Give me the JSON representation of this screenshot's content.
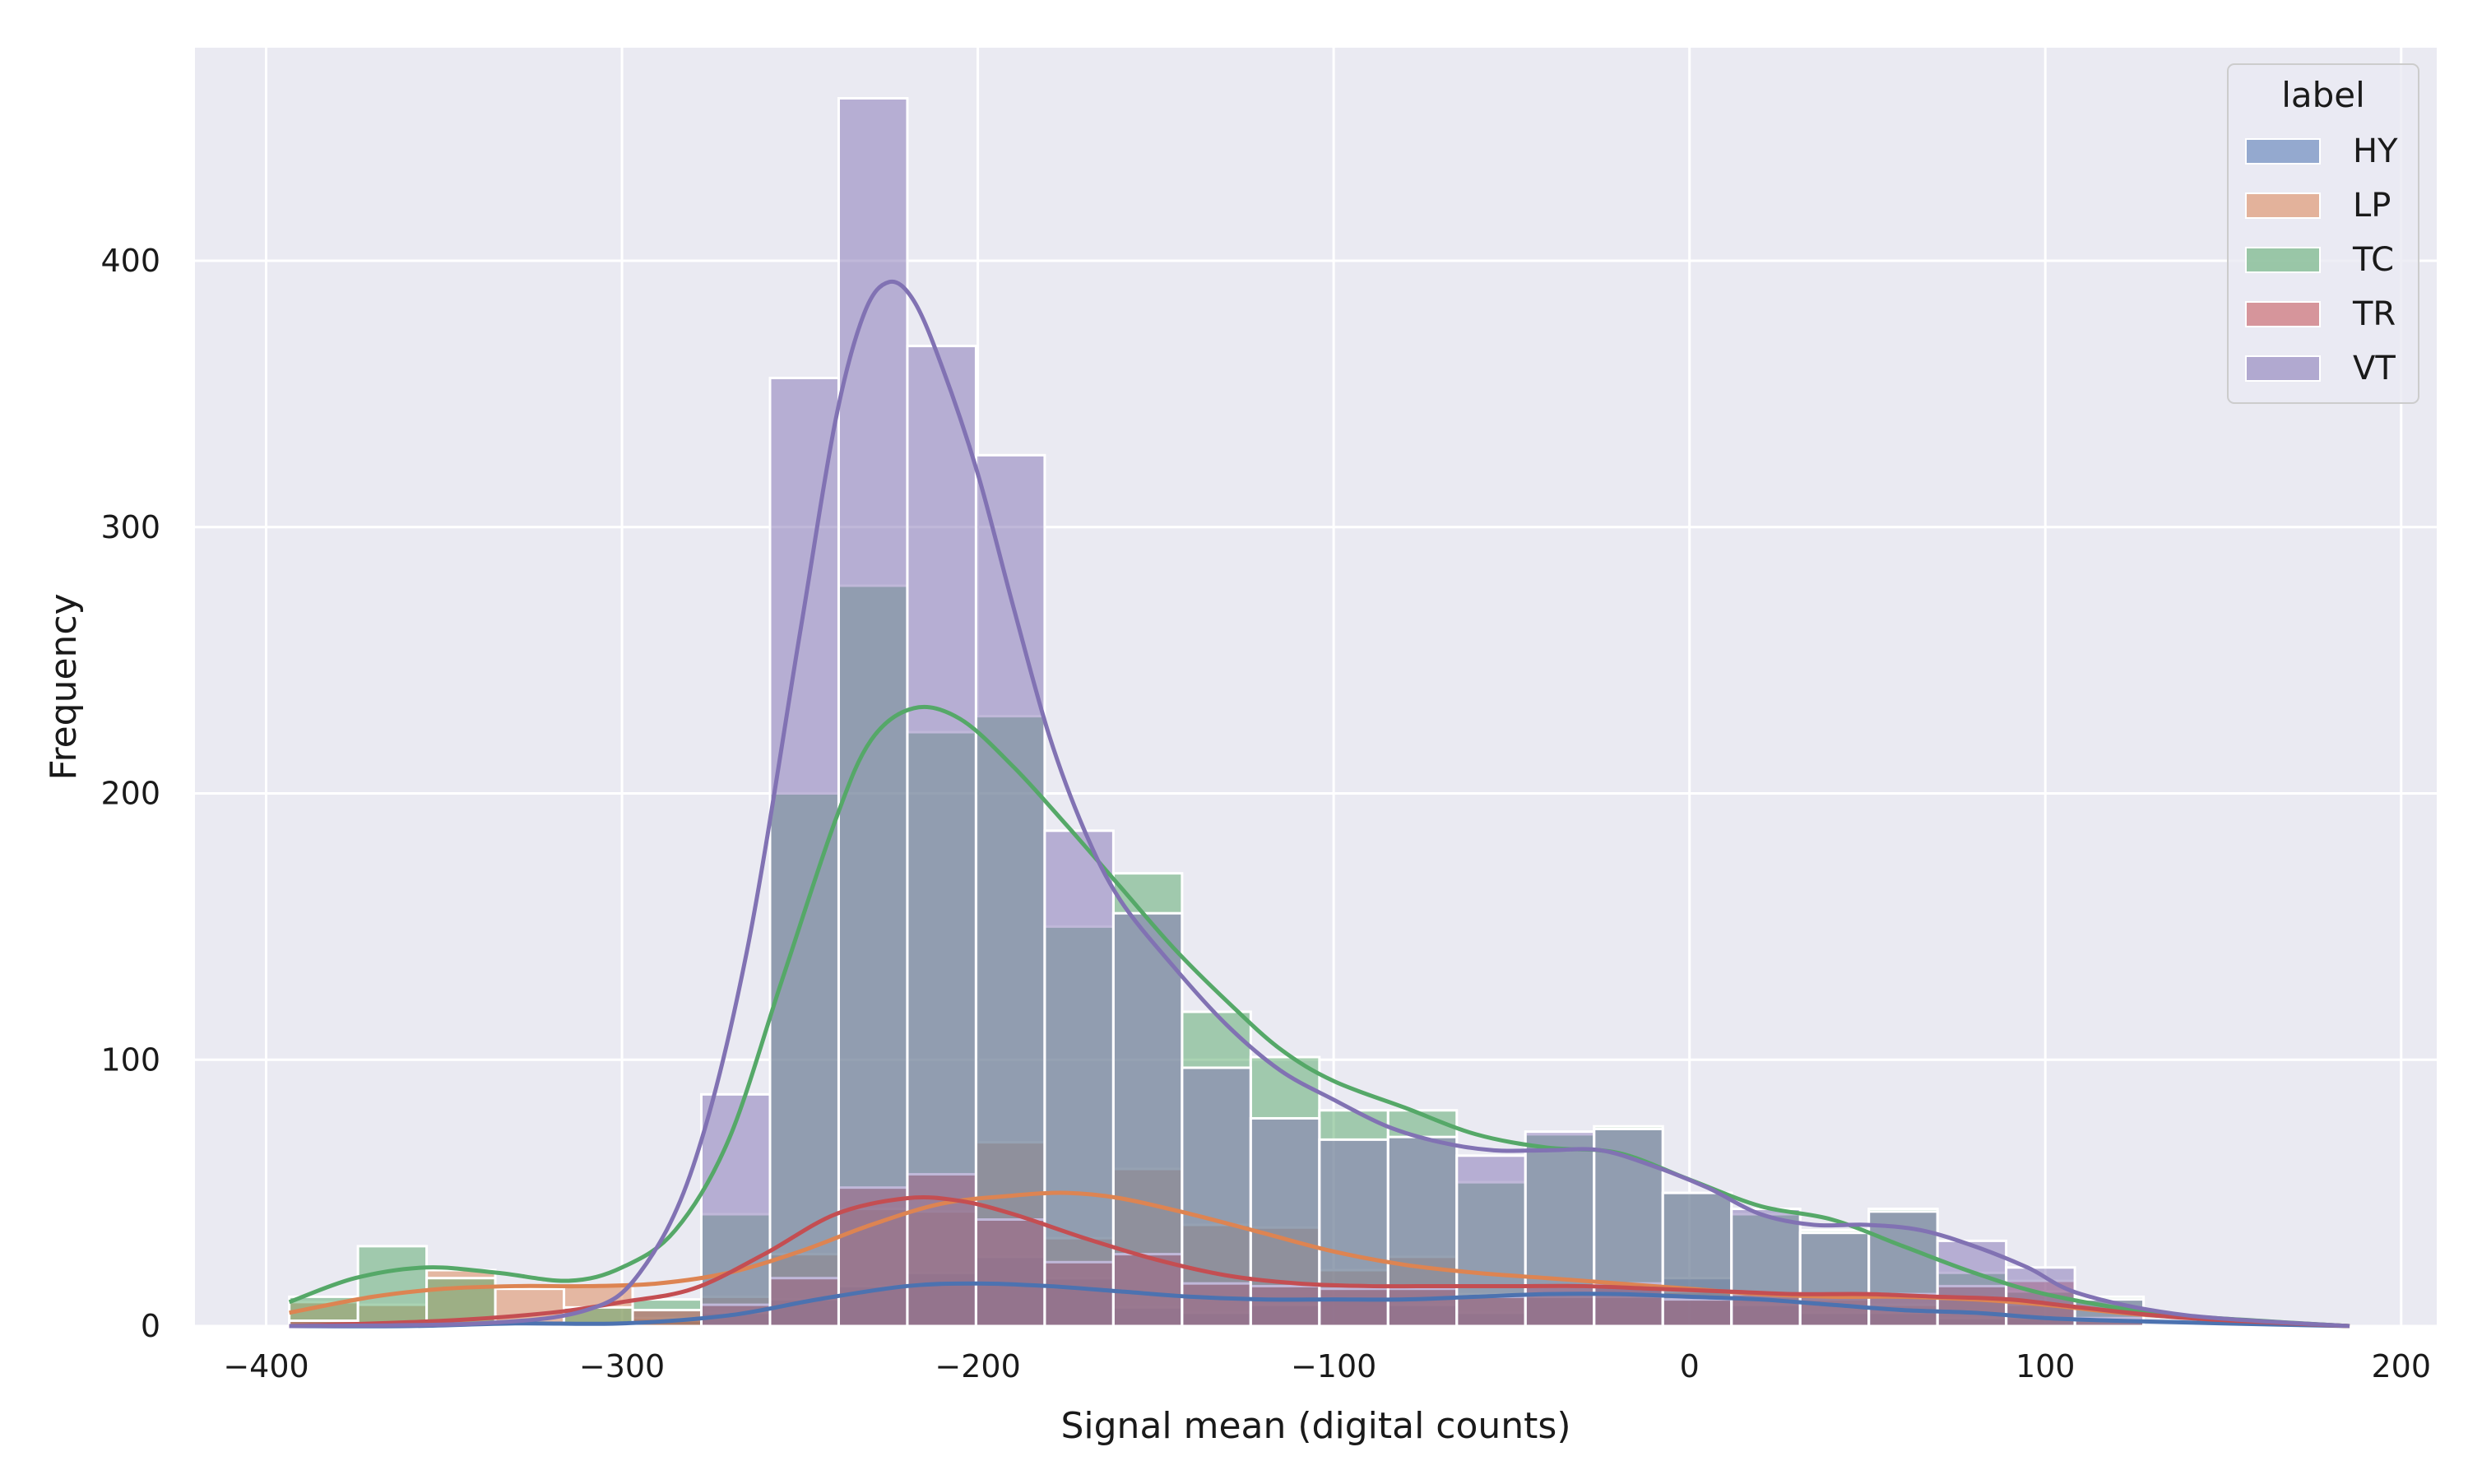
{
  "chart_data": {
    "type": "histogram",
    "xlabel": "Signal mean (digital counts)",
    "ylabel": "Frequency",
    "xlim": [
      -420,
      210
    ],
    "ylim": [
      0,
      480
    ],
    "xticks": [
      -400,
      -300,
      -200,
      -100,
      0,
      100,
      200
    ],
    "xtick_labels": [
      "−400",
      "−300",
      "−200",
      "−100",
      "0",
      "100",
      "200"
    ],
    "yticks": [
      0,
      100,
      200,
      300,
      400
    ],
    "ytick_labels": [
      "0",
      "100",
      "200",
      "300",
      "400"
    ],
    "grid": true,
    "background": "#eaeaf2",
    "legend": {
      "title": "label",
      "placement": "top-right"
    },
    "bin_edges": [
      -393.5,
      -374.2,
      -354.9,
      -335.6,
      -316.3,
      -297.0,
      -277.7,
      -258.4,
      -239.1,
      -219.8,
      -200.5,
      -181.2,
      -161.9,
      -142.6,
      -123.3,
      -104.0,
      -84.7,
      -65.4,
      -46.1,
      -26.8,
      -7.5,
      11.8,
      31.1,
      50.4,
      69.7,
      89.0,
      108.3,
      127.6,
      146.9,
      166.2,
      185.5
    ],
    "series": [
      {
        "name": "HY",
        "color": "#4c72b0",
        "counts": [
          0,
          0,
          0,
          0,
          0,
          2,
          5,
          10,
          15,
          20,
          26,
          18,
          7,
          5,
          8,
          11,
          8,
          5,
          12,
          15,
          18,
          8,
          5,
          5,
          3,
          3,
          1,
          0,
          0,
          0
        ],
        "kde_x": [
          -393.5,
          -360,
          -330,
          -300,
          -270,
          -245,
          -220,
          -200,
          -180,
          -160,
          -140,
          -120,
          -100,
          -80,
          -60,
          -40,
          -20,
          0,
          20,
          40,
          60,
          80,
          100,
          120,
          150,
          185.5
        ],
        "kde_y": [
          0,
          0,
          1,
          1,
          4,
          10,
          15,
          16,
          15,
          13,
          11,
          10,
          10,
          10,
          11,
          12,
          12,
          11,
          10,
          8,
          6,
          5,
          3,
          2,
          1,
          0
        ]
      },
      {
        "name": "LP",
        "color": "#dd8452",
        "counts": [
          9,
          8,
          21,
          14,
          15,
          3,
          11,
          27,
          44,
          43,
          69,
          33,
          59,
          38,
          37,
          21,
          26,
          12,
          11,
          11,
          13,
          11,
          10,
          8,
          10,
          8,
          2,
          0,
          0,
          0
        ],
        "kde_x": [
          -393.5,
          -370,
          -350,
          -330,
          -310,
          -290,
          -270,
          -250,
          -230,
          -210,
          -190,
          -175,
          -160,
          -140,
          -120,
          -100,
          -80,
          -60,
          -40,
          -20,
          0,
          20,
          40,
          60,
          80,
          100,
          130,
          185.5
        ],
        "kde_y": [
          5,
          11,
          14,
          15,
          15,
          16,
          20,
          28,
          38,
          46,
          49,
          50,
          48,
          42,
          35,
          28,
          23,
          20,
          18,
          16,
          14,
          12,
          11,
          11,
          10,
          8,
          4,
          0
        ]
      },
      {
        "name": "TC",
        "color": "#55a868",
        "counts": [
          11,
          30,
          18,
          0,
          7,
          10,
          42,
          200,
          278,
          223,
          229,
          150,
          170,
          118,
          101,
          81,
          81,
          54,
          72,
          75,
          50,
          42,
          36,
          44,
          20,
          13,
          11,
          0,
          0,
          0
        ],
        "kde_x": [
          -393.5,
          -375,
          -355,
          -335,
          -315,
          -300,
          -285,
          -270,
          -255,
          -240,
          -230,
          -218,
          -205,
          -190,
          -175,
          -160,
          -145,
          -130,
          -115,
          -100,
          -80,
          -60,
          -40,
          -20,
          0,
          20,
          40,
          60,
          80,
          100,
          130,
          160,
          185.5
        ],
        "kde_y": [
          9,
          18,
          22,
          20,
          17,
          22,
          36,
          70,
          130,
          190,
          220,
          232,
          228,
          210,
          188,
          165,
          142,
          122,
          104,
          92,
          82,
          72,
          67,
          65,
          55,
          45,
          40,
          30,
          20,
          12,
          5,
          2,
          0
        ]
      },
      {
        "name": "TR",
        "color": "#c44e52",
        "counts": [
          2,
          0,
          0,
          0,
          0,
          6,
          8,
          18,
          52,
          57,
          40,
          24,
          27,
          16,
          15,
          14,
          14,
          11,
          15,
          16,
          10,
          12,
          12,
          12,
          15,
          17,
          3,
          0,
          0,
          0
        ],
        "kde_x": [
          -393.5,
          -350,
          -320,
          -300,
          -280,
          -260,
          -240,
          -220,
          -205,
          -190,
          -170,
          -150,
          -130,
          -110,
          -90,
          -70,
          -50,
          -30,
          -10,
          10,
          30,
          50,
          70,
          90,
          110,
          140,
          185.5
        ],
        "kde_y": [
          0,
          2,
          5,
          9,
          14,
          27,
          42,
          48,
          47,
          42,
          33,
          25,
          19,
          16,
          15,
          15,
          15,
          15,
          14,
          13,
          12,
          12,
          11,
          10,
          7,
          3,
          0
        ]
      },
      {
        "name": "VT",
        "color": "#8172b3",
        "counts": [
          0,
          0,
          0,
          0,
          0,
          0,
          87,
          356,
          461,
          368,
          327,
          186,
          155,
          97,
          78,
          70,
          71,
          64,
          73,
          74,
          50,
          44,
          35,
          43,
          32,
          22,
          10,
          0,
          0,
          0
        ],
        "kde_x": [
          -393.5,
          -340,
          -310,
          -295,
          -280,
          -265,
          -250,
          -240,
          -232,
          -225,
          -218,
          -210,
          -200,
          -190,
          -180,
          -170,
          -160,
          -145,
          -130,
          -115,
          -100,
          -85,
          -70,
          -55,
          -40,
          -25,
          -10,
          5,
          20,
          35,
          50,
          65,
          80,
          95,
          110,
          140,
          185.5
        ],
        "kde_y": [
          0,
          1,
          6,
          20,
          60,
          140,
          260,
          340,
          380,
          392,
          385,
          360,
          320,
          270,
          222,
          186,
          160,
          135,
          113,
          96,
          85,
          75,
          69,
          66,
          66,
          66,
          60,
          52,
          42,
          38,
          38,
          36,
          30,
          22,
          12,
          4,
          0
        ]
      }
    ]
  }
}
